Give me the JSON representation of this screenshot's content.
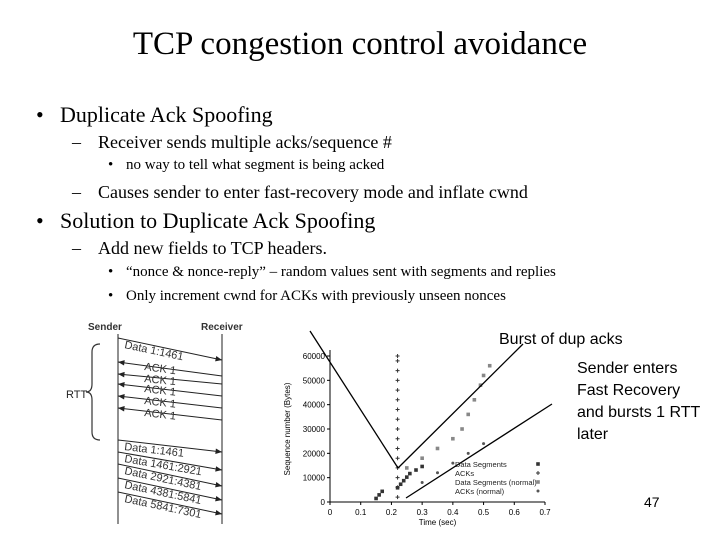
{
  "slide": {
    "title": "TCP congestion control avoidance",
    "page_number": "47"
  },
  "bullets": {
    "b1": "Duplicate Ack Spoofing",
    "b1_1": "Receiver sends multiple acks/sequence #",
    "b1_1_1": "no way to tell what segment is being acked",
    "b1_2": "Causes sender to enter fast-recovery mode and inflate cwnd",
    "b2": "Solution to Duplicate Ack Spoofing",
    "b2_1": "Add new fields to TCP headers.",
    "b2_1_1": "“nonce & nonce-reply” – random values sent with segments and replies",
    "b2_1_2": "Only increment cwnd for ACKs with previously unseen nonces"
  },
  "markers": {
    "l1": "•",
    "l2": "–",
    "l3": "•"
  },
  "callouts": {
    "burst": "Burst of dup acks",
    "recovery_lines": [
      "Sender enters",
      "Fast Recovery",
      "and bursts 1 RTT",
      "later"
    ]
  },
  "diagram": {
    "sender_label": "Sender",
    "receiver_label": "Receiver",
    "rtt_label": "RTT",
    "messages": [
      {
        "label": "Data 1:1461",
        "dir": "right"
      },
      {
        "label": "ACK 1",
        "dir": "left"
      },
      {
        "label": "ACK 1",
        "dir": "left"
      },
      {
        "label": "ACK 1",
        "dir": "left"
      },
      {
        "label": "ACK 1",
        "dir": "left"
      },
      {
        "label": "ACK 1",
        "dir": "left"
      },
      {
        "label": "Data 1:1461",
        "dir": "right"
      },
      {
        "label": "Data 1461:2921",
        "dir": "right"
      },
      {
        "label": "Data 2921:4381",
        "dir": "right"
      },
      {
        "label": "Data 4381:5841",
        "dir": "right"
      },
      {
        "label": "Data 5841:7301",
        "dir": "right"
      }
    ]
  },
  "chart_data": {
    "type": "scatter",
    "title": "",
    "xlabel": "Time (sec)",
    "ylabel": "Sequence number (Bytes)",
    "xlim": [
      0,
      0.7
    ],
    "ylim": [
      0,
      60000
    ],
    "x_ticks": [
      "0",
      "0.1",
      "0.2",
      "0.3",
      "0.4",
      "0.5",
      "0.6",
      "0.7"
    ],
    "y_ticks": [
      "0",
      "10000",
      "20000",
      "30000",
      "40000",
      "50000",
      "60000"
    ],
    "legend": {
      "position": "bottom-right",
      "entries": [
        "Data Segments",
        "ACKs",
        "Data Segments (normal)",
        "ACKs (normal)"
      ]
    },
    "series": [
      {
        "name": "Data Segments",
        "x": [
          0.15,
          0.16,
          0.17,
          0.22,
          0.23,
          0.24,
          0.25,
          0.26,
          0.28,
          0.3
        ],
        "y": [
          1460,
          2920,
          4380,
          5840,
          7300,
          8760,
          10220,
          11680,
          13140,
          14600
        ]
      },
      {
        "name": "ACKs",
        "x": [
          0.22,
          0.22,
          0.22,
          0.22,
          0.22,
          0.22,
          0.22,
          0.22,
          0.22,
          0.22,
          0.22,
          0.22,
          0.22,
          0.22,
          0.22,
          0.22
        ],
        "y": [
          2000,
          6000,
          10000,
          14000,
          18000,
          22000,
          26000,
          30000,
          34000,
          38000,
          42000,
          46000,
          50000,
          54000,
          58000,
          60000
        ]
      },
      {
        "name": "Data Segments (normal)",
        "x": [
          0.25,
          0.3,
          0.35,
          0.4,
          0.43,
          0.45,
          0.47,
          0.49,
          0.5,
          0.52
        ],
        "y": [
          14000,
          18000,
          22000,
          26000,
          30000,
          36000,
          42000,
          48000,
          52000,
          56000
        ]
      },
      {
        "name": "ACKs (normal)",
        "x": [
          0.3,
          0.35,
          0.4,
          0.45,
          0.5
        ],
        "y": [
          8000,
          12000,
          16000,
          20000,
          24000
        ]
      }
    ]
  }
}
